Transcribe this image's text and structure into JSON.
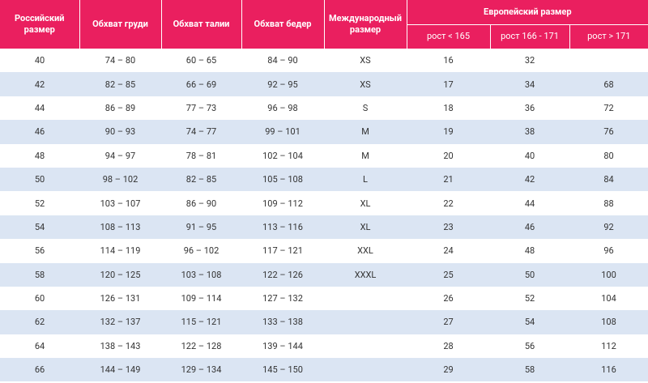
{
  "table": {
    "header": {
      "columns": [
        "Российский размер",
        "Обхват груди",
        "Обхват талии",
        "Обхват бедер",
        "Международный размер"
      ],
      "group": "Европейский размер",
      "group_columns": [
        "рост < 165",
        "рост 166 - 171",
        "рост > 171"
      ]
    },
    "rows": [
      {
        "ru": 40,
        "chest": "74 – 80",
        "waist": "60 – 65",
        "hips": "84 – 90",
        "intl": "XS",
        "eu1": 16,
        "eu2": 32
      },
      {
        "ru": 42,
        "chest": "82 – 85",
        "waist": "66 – 69",
        "hips": "92 – 95",
        "intl": "XS",
        "eu1": 17,
        "eu2": 34,
        "eu3": 68
      },
      {
        "ru": 44,
        "chest": "86 – 89",
        "waist": "77 – 73",
        "hips": "96 – 98",
        "intl": "S",
        "eu1": 18,
        "eu2": 36,
        "eu3": 72
      },
      {
        "ru": 46,
        "chest": "90 – 93",
        "waist": "74 – 77",
        "hips": "99 – 101",
        "intl": "M",
        "eu1": 19,
        "eu2": 38,
        "eu3": 76
      },
      {
        "ru": 48,
        "chest": "94 – 97",
        "waist": "78 – 81",
        "hips": "102 – 104",
        "intl": "M",
        "eu1": 20,
        "eu2": 40,
        "eu3": 80
      },
      {
        "ru": 50,
        "chest": "98 – 102",
        "waist": "82 – 85",
        "hips": "105 – 108",
        "intl": "L",
        "eu1": 21,
        "eu2": 42,
        "eu3": 84
      },
      {
        "ru": 52,
        "chest": "103 – 107",
        "waist": "86 – 90",
        "hips": "109 – 112",
        "intl": "XL",
        "eu1": 22,
        "eu2": 44,
        "eu3": 88
      },
      {
        "ru": 54,
        "chest": "108 – 113",
        "waist": "91 – 95",
        "hips": "113 – 116",
        "intl": "XL",
        "eu1": 23,
        "eu2": 46,
        "eu3": 92
      },
      {
        "ru": 56,
        "chest": "114 – 119",
        "waist": "96 – 102",
        "hips": "117 – 121",
        "intl": "XXL",
        "eu1": 24,
        "eu2": 48,
        "eu3": 96
      },
      {
        "ru": 58,
        "chest": "120 – 125",
        "waist": "103 – 108",
        "hips": "122 – 126",
        "intl": "XXXL",
        "eu1": 25,
        "eu2": 50,
        "eu3": 100
      },
      {
        "ru": 60,
        "chest": "126 – 131",
        "waist": "109 – 114",
        "hips": "127 – 132",
        "eu1": 26,
        "eu2": 52,
        "eu3": 104
      },
      {
        "ru": 62,
        "chest": "132 – 137",
        "waist": "115 – 121",
        "hips": "133 – 138",
        "eu1": 27,
        "eu2": 54,
        "eu3": 108
      },
      {
        "ru": 64,
        "chest": "138 – 143",
        "waist": "122 – 128",
        "hips": "139 – 144",
        "eu1": 28,
        "eu2": 56,
        "eu3": 112
      },
      {
        "ru": 66,
        "chest": "144 – 149",
        "waist": "129 – 134",
        "hips": "145 – 150",
        "eu1": 29,
        "eu2": 58,
        "eu3": 116
      }
    ]
  }
}
